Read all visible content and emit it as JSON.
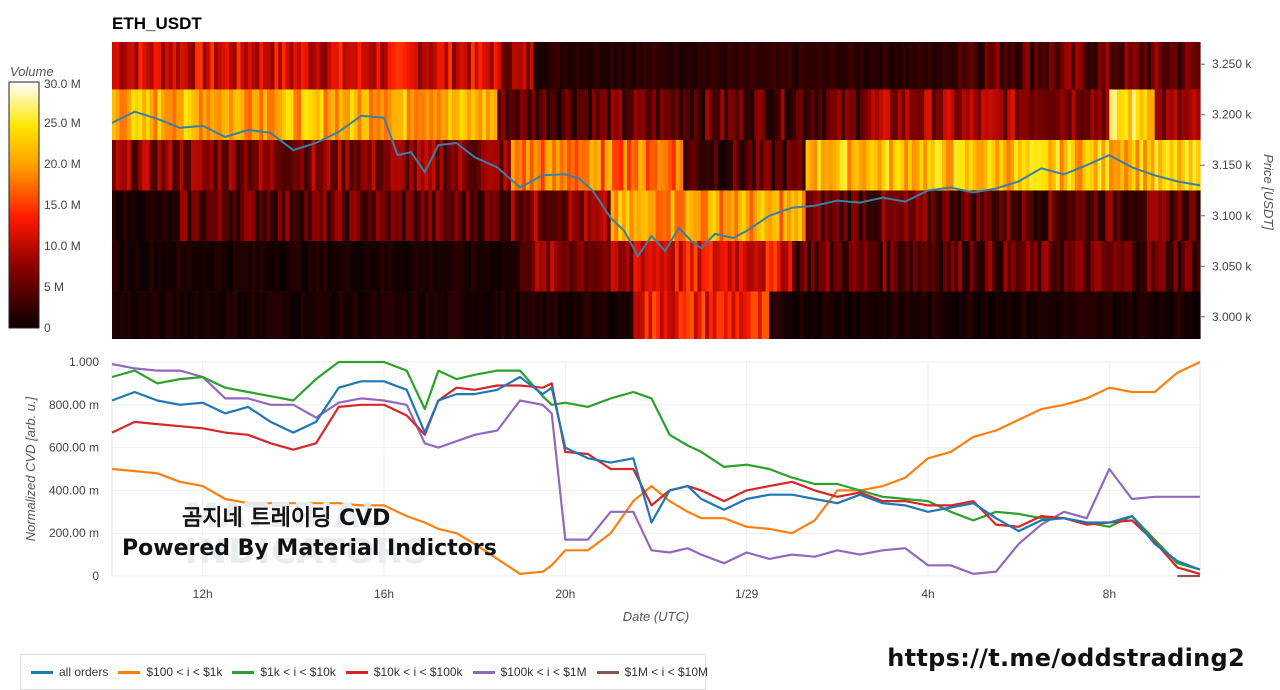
{
  "title": "ETH_USDT",
  "link": "https://t.me/oddstrading2",
  "overlay": {
    "line1": "곰지네 트레이딩 CVD",
    "line2": "Powered By Material Indictors",
    "watermark1": "MATERIAL",
    "watermark2": "INDICATORS"
  },
  "colorbar": {
    "label": "Volume",
    "ticks": [
      "30.0 M",
      "25.0 M",
      "20.0 M",
      "15.0 M",
      "10.0 M",
      "5 M",
      "0"
    ],
    "values": [
      30,
      25,
      20,
      15,
      10,
      5,
      0
    ]
  },
  "colors": {
    "all_orders": "#1f77b4",
    "b100_1k": "#ff7f0e",
    "b1k_10k": "#2ca02c",
    "b10k_100k": "#d62728",
    "b100k_1m": "#9467bd",
    "b1m_10m": "#8c564b",
    "heat_low": "#0a0000",
    "heat_high": "#ffffff"
  },
  "legend": [
    {
      "name": "all orders",
      "color": "#1f77b4"
    },
    {
      "name": "$100 < i < $1k",
      "color": "#ff7f0e"
    },
    {
      "name": "$1k < i < $10k",
      "color": "#2ca02c"
    },
    {
      "name": "$10k < i < $100k",
      "color": "#d62728"
    },
    {
      "name": "$100k < i < $1M",
      "color": "#9467bd"
    },
    {
      "name": "$1M < i < $10M",
      "color": "#8c564b"
    }
  ],
  "chart_data": [
    {
      "type": "heatmap",
      "title": "ETH_USDT",
      "ylabel": "Price [USDT]",
      "y_ticks": [
        "3.250 k",
        "3.200 k",
        "3.150 k",
        "3.100 k",
        "3.050 k",
        "3.000 k"
      ],
      "y_tick_values": [
        3250,
        3200,
        3150,
        3100,
        3050,
        3000
      ],
      "ylim": [
        2978,
        3272
      ],
      "price_bands": [
        3250,
        3200,
        3150,
        3100,
        3050,
        3000
      ],
      "x_time_hours": [
        10,
        34
      ],
      "band_activity": [
        {
          "band": 3250,
          "segments": [
            [
              10,
              18.5,
              11
            ],
            [
              18.5,
              19.3,
              8
            ],
            [
              19.3,
              28.5,
              2
            ],
            [
              28.5,
              34,
              5
            ]
          ]
        },
        {
          "band": 3200,
          "segments": [
            [
              10,
              18.5,
              21
            ],
            [
              18.5,
              26.5,
              5
            ],
            [
              26.5,
              32,
              8
            ],
            [
              32,
              33,
              24
            ],
            [
              33,
              34,
              7
            ]
          ]
        },
        {
          "band": 3150,
          "segments": [
            [
              10,
              18.8,
              7
            ],
            [
              18.8,
              22.6,
              18
            ],
            [
              22.6,
              25.3,
              4
            ],
            [
              25.3,
              34,
              22
            ]
          ]
        },
        {
          "band": 3100,
          "segments": [
            [
              10,
              11.5,
              1
            ],
            [
              11.5,
              18.8,
              5
            ],
            [
              18.8,
              21,
              7
            ],
            [
              21,
              25.3,
              20
            ],
            [
              25.3,
              34,
              5
            ]
          ]
        },
        {
          "band": 3050,
          "segments": [
            [
              10,
              19,
              1
            ],
            [
              19,
              21.5,
              7
            ],
            [
              21.5,
              25,
              12
            ],
            [
              25,
              34,
              5
            ]
          ]
        },
        {
          "band": 3000,
          "segments": [
            [
              10,
              21.5,
              1
            ],
            [
              21.5,
              24.5,
              13
            ],
            [
              24.5,
              34,
              1
            ]
          ]
        }
      ],
      "price_line": {
        "name": "Price",
        "color": "#3d7ea6",
        "x": [
          10,
          10.5,
          11,
          11.5,
          12,
          12.5,
          13,
          13.5,
          14,
          14.5,
          15,
          15.5,
          16,
          16.3,
          16.6,
          16.9,
          17.2,
          17.6,
          18,
          18.5,
          19,
          19.5,
          20,
          20.3,
          20.6,
          21,
          21.3,
          21.6,
          21.9,
          22.2,
          22.5,
          22.8,
          23,
          23.3,
          23.7,
          24,
          24.5,
          25,
          25.5,
          26,
          26.5,
          27,
          27.5,
          28,
          28.5,
          29,
          29.5,
          30,
          30.5,
          31,
          31.5,
          32,
          32.5,
          33,
          33.5,
          34
        ],
        "y": [
          3192,
          3203,
          3196,
          3187,
          3189,
          3178,
          3185,
          3182,
          3165,
          3172,
          3183,
          3199,
          3197,
          3160,
          3163,
          3143,
          3170,
          3172,
          3158,
          3148,
          3128,
          3140,
          3141,
          3137,
          3125,
          3098,
          3085,
          3060,
          3080,
          3065,
          3088,
          3074,
          3068,
          3082,
          3078,
          3085,
          3100,
          3108,
          3110,
          3115,
          3113,
          3118,
          3114,
          3125,
          3128,
          3123,
          3127,
          3134,
          3147,
          3141,
          3150,
          3160,
          3148,
          3140,
          3134,
          3130
        ]
      }
    },
    {
      "type": "line",
      "xlabel": "Date (UTC)",
      "ylabel": "Normalized CVD [arb. u.]",
      "x_ticks": [
        "12h",
        "16h",
        "20h",
        "1/29",
        "4h",
        "8h"
      ],
      "x_tick_values": [
        12,
        16,
        20,
        24,
        28,
        32
      ],
      "xlim": [
        10,
        34
      ],
      "y_ticks": [
        "1.000",
        "800.00 m",
        "600.00 m",
        "400.00 m",
        "200.00 m",
        "0"
      ],
      "y_tick_values": [
        1.0,
        0.8,
        0.6,
        0.4,
        0.2,
        0
      ],
      "ylim": [
        0,
        1.0
      ],
      "x": [
        10,
        10.5,
        11,
        11.5,
        12,
        12.5,
        13,
        13.5,
        14,
        14.5,
        15,
        15.5,
        16,
        16.5,
        16.9,
        17.2,
        17.6,
        18,
        18.5,
        19,
        19.5,
        19.7,
        20,
        20.5,
        21,
        21.5,
        21.9,
        22.3,
        22.7,
        23,
        23.5,
        24,
        24.5,
        25,
        25.5,
        26,
        26.5,
        27,
        27.5,
        28,
        28.5,
        29,
        29.5,
        30,
        30.5,
        31,
        31.5,
        32,
        32.5,
        33,
        33.5,
        34
      ],
      "series": [
        {
          "name": "all orders",
          "values": [
            0.82,
            0.86,
            0.82,
            0.8,
            0.81,
            0.76,
            0.79,
            0.72,
            0.67,
            0.72,
            0.88,
            0.91,
            0.91,
            0.87,
            0.67,
            0.82,
            0.85,
            0.85,
            0.87,
            0.93,
            0.85,
            0.88,
            0.6,
            0.55,
            0.53,
            0.55,
            0.25,
            0.4,
            0.42,
            0.36,
            0.31,
            0.36,
            0.38,
            0.38,
            0.36,
            0.34,
            0.38,
            0.34,
            0.33,
            0.3,
            0.32,
            0.34,
            0.27,
            0.21,
            0.26,
            0.27,
            0.25,
            0.25,
            0.28,
            0.15,
            0.07,
            0.03
          ]
        },
        {
          "name": "$100 < i < $1k",
          "values": [
            0.5,
            0.49,
            0.48,
            0.44,
            0.42,
            0.36,
            0.34,
            0.34,
            0.34,
            0.34,
            0.34,
            0.33,
            0.33,
            0.28,
            0.25,
            0.22,
            0.2,
            0.15,
            0.08,
            0.01,
            0.02,
            0.05,
            0.12,
            0.12,
            0.2,
            0.35,
            0.42,
            0.35,
            0.3,
            0.27,
            0.27,
            0.23,
            0.22,
            0.2,
            0.26,
            0.4,
            0.4,
            0.42,
            0.46,
            0.55,
            0.58,
            0.65,
            0.68,
            0.73,
            0.78,
            0.8,
            0.83,
            0.88,
            0.86,
            0.86,
            0.95,
            1.0
          ]
        },
        {
          "name": "$1k < i < $10k",
          "values": [
            0.93,
            0.96,
            0.9,
            0.92,
            0.93,
            0.88,
            0.86,
            0.84,
            0.82,
            0.92,
            1.0,
            1.0,
            1.0,
            0.96,
            0.78,
            0.96,
            0.92,
            0.94,
            0.96,
            0.96,
            0.84,
            0.8,
            0.81,
            0.79,
            0.83,
            0.86,
            0.83,
            0.66,
            0.61,
            0.58,
            0.51,
            0.52,
            0.5,
            0.46,
            0.43,
            0.43,
            0.4,
            0.37,
            0.36,
            0.35,
            0.3,
            0.26,
            0.3,
            0.29,
            0.27,
            0.27,
            0.25,
            0.23,
            0.28,
            0.17,
            0.06,
            0.03
          ]
        },
        {
          "name": "$10k < i < $100k",
          "values": [
            0.67,
            0.72,
            0.71,
            0.7,
            0.69,
            0.67,
            0.66,
            0.62,
            0.59,
            0.62,
            0.79,
            0.8,
            0.8,
            0.75,
            0.66,
            0.82,
            0.88,
            0.87,
            0.89,
            0.89,
            0.88,
            0.9,
            0.58,
            0.57,
            0.5,
            0.5,
            0.33,
            0.4,
            0.42,
            0.4,
            0.35,
            0.4,
            0.42,
            0.44,
            0.4,
            0.37,
            0.39,
            0.35,
            0.35,
            0.33,
            0.33,
            0.35,
            0.24,
            0.23,
            0.28,
            0.27,
            0.24,
            0.25,
            0.26,
            0.16,
            0.04,
            0.01
          ]
        },
        {
          "name": "$100k < i < $1M",
          "values": [
            0.99,
            0.97,
            0.96,
            0.96,
            0.93,
            0.83,
            0.83,
            0.8,
            0.8,
            0.74,
            0.81,
            0.83,
            0.82,
            0.8,
            0.62,
            0.6,
            0.63,
            0.66,
            0.68,
            0.82,
            0.8,
            0.76,
            0.17,
            0.17,
            0.3,
            0.3,
            0.12,
            0.11,
            0.13,
            0.1,
            0.06,
            0.11,
            0.08,
            0.1,
            0.09,
            0.12,
            0.1,
            0.12,
            0.13,
            0.05,
            0.05,
            0.01,
            0.02,
            0.15,
            0.24,
            0.3,
            0.27,
            0.5,
            0.36,
            0.37,
            0.37,
            0.37
          ]
        },
        {
          "name": "$1M < i < $10M",
          "values": [
            null,
            null,
            null,
            null,
            null,
            null,
            null,
            null,
            null,
            null,
            null,
            null,
            null,
            null,
            null,
            null,
            null,
            null,
            null,
            null,
            null,
            null,
            null,
            null,
            null,
            null,
            null,
            null,
            null,
            null,
            null,
            null,
            null,
            null,
            null,
            null,
            null,
            null,
            null,
            null,
            null,
            null,
            null,
            null,
            null,
            null,
            null,
            null,
            null,
            null,
            0.0,
            0.0
          ]
        }
      ]
    }
  ]
}
